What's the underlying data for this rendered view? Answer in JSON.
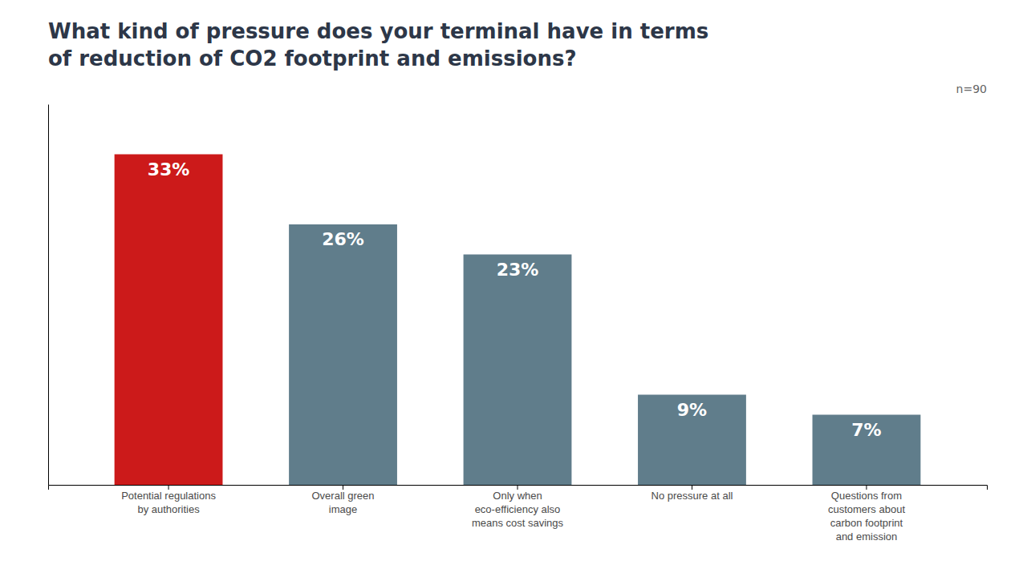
{
  "chart_data": {
    "type": "bar",
    "title": "What kind of pressure does your terminal have in terms\nof reduction of CO2 footprint and emissions?",
    "annotations": [
      "n=90"
    ],
    "categories": [
      "Potential regulations\nby authorities",
      "Overall green\nimage",
      "Only when\neco-efficiency also\nmeans cost savings",
      "No pressure at all",
      "Questions from\ncustomers about\ncarbon footprint\nand emission"
    ],
    "values": [
      33,
      26,
      23,
      9,
      7
    ],
    "value_labels": [
      "33%",
      "26%",
      "23%",
      "9%",
      "7%"
    ],
    "colors": [
      "#cc1a1a",
      "#607d8b",
      "#607d8b",
      "#607d8b",
      "#607d8b"
    ],
    "ylim": [
      0,
      38
    ],
    "data_labels": true,
    "tick_labels": "x",
    "grid": false
  }
}
